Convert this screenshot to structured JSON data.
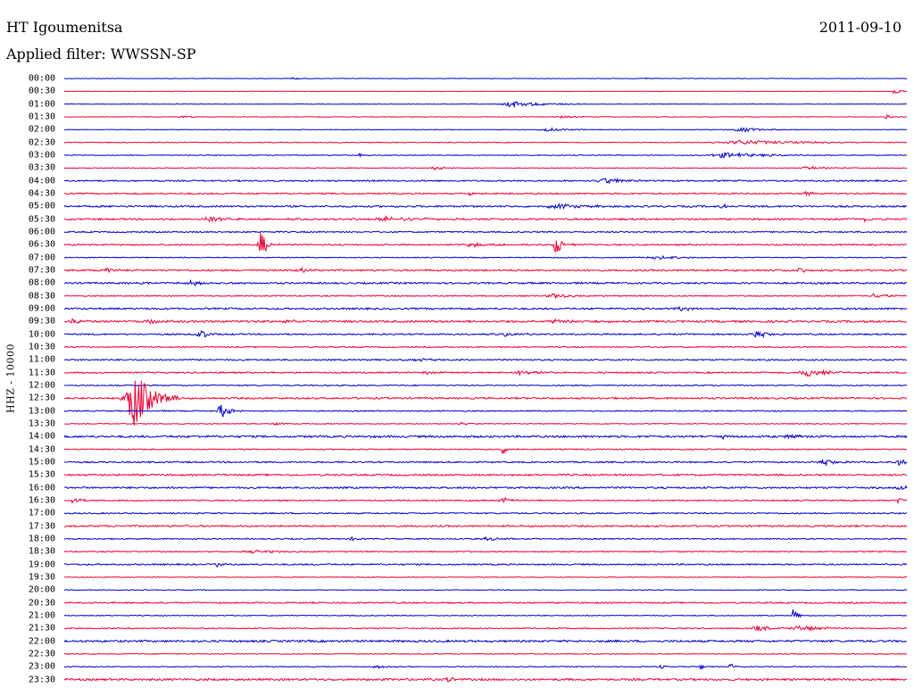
{
  "header": {
    "station": "HT Igoumenitsa",
    "date": "2011-09-10",
    "filter": "Applied filter: WWSSN-SP"
  },
  "chart_data": {
    "type": "seismogram (helicorder)",
    "ylabel": "HHZ - 10000",
    "colors": [
      "#0000cc",
      "#ee0033"
    ],
    "rows": [
      {
        "label": "00:00",
        "color": "#0000cc",
        "noise": 0.3,
        "events": [
          {
            "t": 0.27,
            "amp": 1.5,
            "dur": 0.01
          },
          {
            "t": 0.69,
            "amp": 1.5,
            "dur": 0.005
          }
        ]
      },
      {
        "label": "00:30",
        "color": "#ee0033",
        "noise": 0.3,
        "events": [
          {
            "t": 0.985,
            "amp": 5,
            "dur": 0.006
          }
        ]
      },
      {
        "label": "01:00",
        "color": "#0000cc",
        "noise": 0.4,
        "events": [
          {
            "t": 0.53,
            "amp": 4,
            "dur": 0.03
          }
        ]
      },
      {
        "label": "01:30",
        "color": "#ee0033",
        "noise": 0.4,
        "events": [
          {
            "t": 0.14,
            "amp": 2,
            "dur": 0.01
          },
          {
            "t": 0.59,
            "amp": 2,
            "dur": 0.02
          },
          {
            "t": 0.975,
            "amp": 3,
            "dur": 0.006
          }
        ]
      },
      {
        "label": "02:00",
        "color": "#0000cc",
        "noise": 0.4,
        "events": [
          {
            "t": 0.57,
            "amp": 2,
            "dur": 0.03
          },
          {
            "t": 0.8,
            "amp": 2.5,
            "dur": 0.03
          }
        ]
      },
      {
        "label": "02:30",
        "color": "#ee0033",
        "noise": 0.6,
        "events": [
          {
            "t": 0.8,
            "amp": 2.5,
            "dur": 0.08
          }
        ]
      },
      {
        "label": "03:00",
        "color": "#0000cc",
        "noise": 0.6,
        "events": [
          {
            "t": 0.35,
            "amp": 3,
            "dur": 0.005
          },
          {
            "t": 0.78,
            "amp": 3,
            "dur": 0.05
          }
        ]
      },
      {
        "label": "03:30",
        "color": "#ee0033",
        "noise": 0.5,
        "events": [
          {
            "t": 0.44,
            "amp": 2,
            "dur": 0.015
          },
          {
            "t": 0.88,
            "amp": 2,
            "dur": 0.02
          }
        ]
      },
      {
        "label": "04:00",
        "color": "#0000cc",
        "noise": 1.0,
        "events": [
          {
            "t": 0.64,
            "amp": 3,
            "dur": 0.03
          }
        ]
      },
      {
        "label": "04:30",
        "color": "#ee0033",
        "noise": 1.0,
        "events": [
          {
            "t": 0.48,
            "amp": 2,
            "dur": 0.015
          },
          {
            "t": 0.88,
            "amp": 7,
            "dur": 0.004
          }
        ]
      },
      {
        "label": "05:00",
        "color": "#0000cc",
        "noise": 1.2,
        "events": [
          {
            "t": 0.58,
            "amp": 3,
            "dur": 0.03
          },
          {
            "t": 0.78,
            "amp": 4,
            "dur": 0.005
          }
        ]
      },
      {
        "label": "05:30",
        "color": "#ee0033",
        "noise": 1.2,
        "events": [
          {
            "t": 0.17,
            "amp": 3,
            "dur": 0.02
          },
          {
            "t": 0.38,
            "amp": 3,
            "dur": 0.04
          },
          {
            "t": 0.95,
            "amp": 4,
            "dur": 0.005
          }
        ]
      },
      {
        "label": "06:00",
        "color": "#0000cc",
        "noise": 0.9,
        "events": []
      },
      {
        "label": "06:30",
        "color": "#ee0033",
        "noise": 1.0,
        "events": [
          {
            "t": 0.233,
            "amp": 15,
            "dur": 0.008
          },
          {
            "t": 0.583,
            "amp": 13,
            "dur": 0.008
          },
          {
            "t": 0.48,
            "amp": 2,
            "dur": 0.03
          }
        ]
      },
      {
        "label": "07:00",
        "color": "#0000cc",
        "noise": 0.6,
        "events": [
          {
            "t": 0.7,
            "amp": 2,
            "dur": 0.04
          }
        ]
      },
      {
        "label": "07:30",
        "color": "#ee0033",
        "noise": 1.2,
        "events": [
          {
            "t": 0.05,
            "amp": 3,
            "dur": 0.01
          },
          {
            "t": 0.28,
            "amp": 3,
            "dur": 0.01
          },
          {
            "t": 0.87,
            "amp": 6,
            "dur": 0.006
          }
        ]
      },
      {
        "label": "08:00",
        "color": "#0000cc",
        "noise": 1.2,
        "events": [
          {
            "t": 0.15,
            "amp": 3,
            "dur": 0.02
          }
        ]
      },
      {
        "label": "08:30",
        "color": "#ee0033",
        "noise": 0.8,
        "events": [
          {
            "t": 0.58,
            "amp": 3,
            "dur": 0.02
          },
          {
            "t": 0.96,
            "amp": 3,
            "dur": 0.02
          }
        ]
      },
      {
        "label": "09:00",
        "color": "#0000cc",
        "noise": 1.2,
        "events": [
          {
            "t": 0.73,
            "amp": 2,
            "dur": 0.02
          }
        ]
      },
      {
        "label": "09:30",
        "color": "#ee0033",
        "noise": 1.4,
        "events": [
          {
            "t": 0.01,
            "amp": 3,
            "dur": 0.01
          },
          {
            "t": 0.1,
            "amp": 3,
            "dur": 0.01
          },
          {
            "t": 0.26,
            "amp": 3,
            "dur": 0.01
          },
          {
            "t": 0.58,
            "amp": 2,
            "dur": 0.04
          }
        ]
      },
      {
        "label": "10:00",
        "color": "#0000cc",
        "noise": 1.0,
        "events": [
          {
            "t": 0.16,
            "amp": 6,
            "dur": 0.01
          },
          {
            "t": 0.52,
            "amp": 2,
            "dur": 0.02
          },
          {
            "t": 0.82,
            "amp": 4,
            "dur": 0.015
          }
        ]
      },
      {
        "label": "10:30",
        "color": "#ee0033",
        "noise": 0.8,
        "events": []
      },
      {
        "label": "11:00",
        "color": "#0000cc",
        "noise": 1.0,
        "events": [
          {
            "t": 0.42,
            "amp": 2,
            "dur": 0.02
          }
        ]
      },
      {
        "label": "11:30",
        "color": "#ee0033",
        "noise": 1.0,
        "events": [
          {
            "t": 0.43,
            "amp": 2,
            "dur": 0.015
          },
          {
            "t": 0.54,
            "amp": 3,
            "dur": 0.02
          },
          {
            "t": 0.88,
            "amp": 5,
            "dur": 0.025
          }
        ]
      },
      {
        "label": "12:00",
        "color": "#0000cc",
        "noise": 0.8,
        "events": []
      },
      {
        "label": "12:30",
        "color": "#ee0033",
        "noise": 1.2,
        "events": [
          {
            "t": 0.08,
            "amp": 36,
            "dur": 0.02
          }
        ]
      },
      {
        "label": "13:00",
        "color": "#0000cc",
        "noise": 0.8,
        "events": [
          {
            "t": 0.185,
            "amp": 9,
            "dur": 0.01
          }
        ]
      },
      {
        "label": "13:30",
        "color": "#ee0033",
        "noise": 0.6,
        "events": [
          {
            "t": 0.25,
            "amp": 2,
            "dur": 0.015
          },
          {
            "t": 0.47,
            "amp": 2,
            "dur": 0.01
          }
        ]
      },
      {
        "label": "14:00",
        "color": "#0000cc",
        "noise": 1.4,
        "events": [
          {
            "t": 0.78,
            "amp": 3,
            "dur": 0.005
          },
          {
            "t": 0.86,
            "amp": 4,
            "dur": 0.01
          }
        ]
      },
      {
        "label": "14:30",
        "color": "#ee0033",
        "noise": 0.8,
        "events": [
          {
            "t": 0.52,
            "amp": 5,
            "dur": 0.008
          }
        ]
      },
      {
        "label": "15:00",
        "color": "#0000cc",
        "noise": 1.0,
        "events": [
          {
            "t": 0.9,
            "amp": 3,
            "dur": 0.02
          },
          {
            "t": 0.99,
            "amp": 3,
            "dur": 0.01
          }
        ]
      },
      {
        "label": "15:30",
        "color": "#ee0033",
        "noise": 1.2,
        "events": []
      },
      {
        "label": "16:00",
        "color": "#0000cc",
        "noise": 1.2,
        "events": [
          {
            "t": 0.99,
            "amp": 3,
            "dur": 0.01
          }
        ]
      },
      {
        "label": "16:30",
        "color": "#ee0033",
        "noise": 0.9,
        "events": [
          {
            "t": 0.01,
            "amp": 3,
            "dur": 0.01
          },
          {
            "t": 0.52,
            "amp": 3,
            "dur": 0.015
          },
          {
            "t": 0.99,
            "amp": 3,
            "dur": 0.01
          }
        ]
      },
      {
        "label": "17:00",
        "color": "#0000cc",
        "noise": 0.9,
        "events": []
      },
      {
        "label": "17:30",
        "color": "#ee0033",
        "noise": 1.2,
        "events": []
      },
      {
        "label": "18:00",
        "color": "#0000cc",
        "noise": 0.8,
        "events": [
          {
            "t": 0.34,
            "amp": 2,
            "dur": 0.01
          },
          {
            "t": 0.5,
            "amp": 2,
            "dur": 0.02
          }
        ]
      },
      {
        "label": "18:30",
        "color": "#ee0033",
        "noise": 0.8,
        "events": [
          {
            "t": 0.22,
            "amp": 2,
            "dur": 0.03
          }
        ]
      },
      {
        "label": "19:00",
        "color": "#0000cc",
        "noise": 1.0,
        "events": [
          {
            "t": 0.18,
            "amp": 3,
            "dur": 0.01
          }
        ]
      },
      {
        "label": "19:30",
        "color": "#ee0033",
        "noise": 0.5,
        "events": []
      },
      {
        "label": "20:00",
        "color": "#0000cc",
        "noise": 0.5,
        "events": []
      },
      {
        "label": "20:30",
        "color": "#ee0033",
        "noise": 1.0,
        "events": []
      },
      {
        "label": "21:00",
        "color": "#0000cc",
        "noise": 0.6,
        "events": [
          {
            "t": 0.865,
            "amp": 9,
            "dur": 0.004
          }
        ]
      },
      {
        "label": "21:30",
        "color": "#ee0033",
        "noise": 0.8,
        "events": [
          {
            "t": 0.82,
            "amp": 4,
            "dur": 0.015
          },
          {
            "t": 0.87,
            "amp": 3,
            "dur": 0.03
          }
        ]
      },
      {
        "label": "22:00",
        "color": "#0000cc",
        "noise": 1.4,
        "events": []
      },
      {
        "label": "22:30",
        "color": "#ee0033",
        "noise": 0.6,
        "events": []
      },
      {
        "label": "23:00",
        "color": "#0000cc",
        "noise": 0.6,
        "events": [
          {
            "t": 0.37,
            "amp": 2,
            "dur": 0.02
          },
          {
            "t": 0.705,
            "amp": 6,
            "dur": 0.004
          },
          {
            "t": 0.755,
            "amp": 5,
            "dur": 0.004
          },
          {
            "t": 0.79,
            "amp": 5,
            "dur": 0.004
          }
        ]
      },
      {
        "label": "23:30",
        "color": "#ee0033",
        "noise": 1.4,
        "events": [
          {
            "t": 0.455,
            "amp": 5,
            "dur": 0.005
          }
        ]
      }
    ]
  }
}
